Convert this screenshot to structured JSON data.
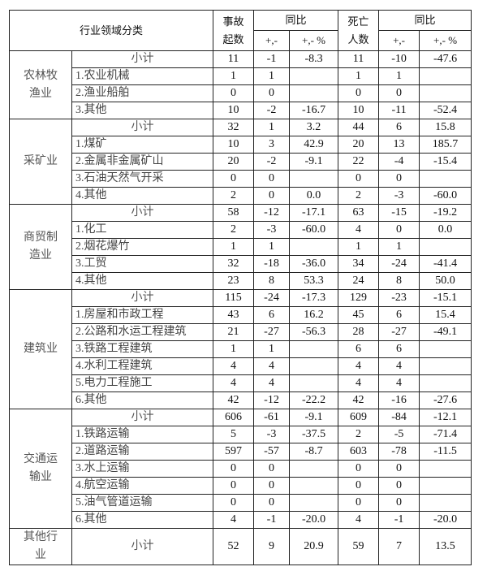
{
  "header": {
    "category": "行业领域分类",
    "accidents": "事故起数",
    "yoy": "同比",
    "deaths": "死亡人数",
    "yoy2": "同比",
    "diff": "+,-",
    "pct": "+,- %",
    "diff2": "+,-",
    "pct2": "+,- %"
  },
  "groups": [
    {
      "name": "农林牧渔业",
      "rows": [
        [
          "小计",
          "11",
          "-1",
          "-8.3",
          "11",
          "-10",
          "-47.6"
        ],
        [
          "1.农业机械",
          "1",
          "1",
          "",
          "1",
          "1",
          ""
        ],
        [
          "2.渔业船舶",
          "0",
          "0",
          "",
          "0",
          "0",
          ""
        ],
        [
          "3.其他",
          "10",
          "-2",
          "-16.7",
          "10",
          "-11",
          "-52.4"
        ]
      ]
    },
    {
      "name": "采矿业",
      "rows": [
        [
          "小计",
          "32",
          "1",
          "3.2",
          "44",
          "6",
          "15.8"
        ],
        [
          "1.煤矿",
          "10",
          "3",
          "42.9",
          "20",
          "13",
          "185.7"
        ],
        [
          "2.金属非金属矿山",
          "20",
          "-2",
          "-9.1",
          "22",
          "-4",
          "-15.4"
        ],
        [
          "3.石油天然气开采",
          "0",
          "0",
          "",
          "0",
          "0",
          ""
        ],
        [
          "4.其他",
          "2",
          "0",
          "0.0",
          "2",
          "-3",
          "-60.0"
        ]
      ]
    },
    {
      "name": "商贸制造业",
      "rows": [
        [
          "小计",
          "58",
          "-12",
          "-17.1",
          "63",
          "-15",
          "-19.2"
        ],
        [
          "1.化工",
          "2",
          "-3",
          "-60.0",
          "4",
          "0",
          "0.0"
        ],
        [
          "2.烟花爆竹",
          "1",
          "1",
          "",
          "1",
          "1",
          ""
        ],
        [
          "3.工贸",
          "32",
          "-18",
          "-36.0",
          "34",
          "-24",
          "-41.4"
        ],
        [
          "4.其他",
          "23",
          "8",
          "53.3",
          "24",
          "8",
          "50.0"
        ]
      ]
    },
    {
      "name": "建筑业",
      "rows": [
        [
          "小计",
          "115",
          "-24",
          "-17.3",
          "129",
          "-23",
          "-15.1"
        ],
        [
          "1.房屋和市政工程",
          "43",
          "6",
          "16.2",
          "45",
          "6",
          "15.4"
        ],
        [
          "2.公路和水运工程建筑",
          "21",
          "-27",
          "-56.3",
          "28",
          "-27",
          "-49.1"
        ],
        [
          "3.铁路工程建筑",
          "1",
          "1",
          "",
          "6",
          "6",
          ""
        ],
        [
          "4.水利工程建筑",
          "4",
          "4",
          "",
          "4",
          "4",
          ""
        ],
        [
          "5.电力工程施工",
          "4",
          "4",
          "",
          "4",
          "4",
          ""
        ],
        [
          "6.其他",
          "42",
          "-12",
          "-22.2",
          "42",
          "-16",
          "-27.6"
        ]
      ]
    },
    {
      "name": "交通运输业",
      "rows": [
        [
          "小计",
          "606",
          "-61",
          "-9.1",
          "609",
          "-84",
          "-12.1"
        ],
        [
          "1.铁路运输",
          "5",
          "-3",
          "-37.5",
          "2",
          "-5",
          "-71.4"
        ],
        [
          "2.道路运输",
          "597",
          "-57",
          "-8.7",
          "603",
          "-78",
          "-11.5"
        ],
        [
          "3.水上运输",
          "0",
          "0",
          "",
          "0",
          "0",
          ""
        ],
        [
          "4.航空运输",
          "0",
          "0",
          "",
          "0",
          "0",
          ""
        ],
        [
          "5.油气管道运输",
          "0",
          "0",
          "",
          "0",
          "0",
          ""
        ],
        [
          "6.其他",
          "4",
          "-1",
          "-20.0",
          "4",
          "-1",
          "-20.0"
        ]
      ]
    },
    {
      "name": "其他行业",
      "rows": [
        [
          "小计",
          "52",
          "9",
          "20.9",
          "59",
          "7",
          "13.5"
        ]
      ]
    }
  ]
}
